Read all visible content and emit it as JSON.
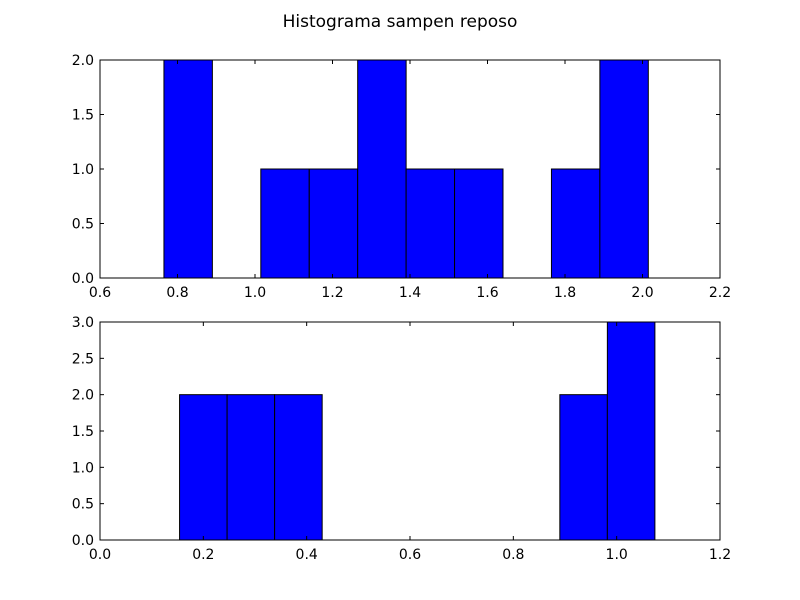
{
  "title": "Histograma sampen reposo",
  "bar_color": "#0000ff",
  "edge_color": "#000000",
  "chart_data": [
    {
      "type": "bar",
      "subtype": "histogram",
      "title": "",
      "xlabel": "",
      "ylabel": "",
      "xlim": [
        0.6,
        2.2
      ],
      "ylim": [
        0.0,
        2.0
      ],
      "xticks": [
        "0.6",
        "0.8",
        "1.0",
        "1.2",
        "1.4",
        "1.6",
        "1.8",
        "2.0",
        "2.2"
      ],
      "yticks": [
        "0.0",
        "0.5",
        "1.0",
        "1.5",
        "2.0"
      ],
      "grid": false,
      "bins": [
        {
          "start": 0.765,
          "end": 0.89,
          "count": 2
        },
        {
          "start": 0.89,
          "end": 1.015,
          "count": 0
        },
        {
          "start": 1.015,
          "end": 1.14,
          "count": 1
        },
        {
          "start": 1.14,
          "end": 1.265,
          "count": 1
        },
        {
          "start": 1.265,
          "end": 1.39,
          "count": 2
        },
        {
          "start": 1.39,
          "end": 1.515,
          "count": 1
        },
        {
          "start": 1.515,
          "end": 1.64,
          "count": 1
        },
        {
          "start": 1.64,
          "end": 1.765,
          "count": 0
        },
        {
          "start": 1.765,
          "end": 1.89,
          "count": 1
        },
        {
          "start": 1.89,
          "end": 2.015,
          "count": 2
        }
      ]
    },
    {
      "type": "bar",
      "subtype": "histogram",
      "title": "",
      "xlabel": "",
      "ylabel": "",
      "xlim": [
        0.0,
        1.2
      ],
      "ylim": [
        0.0,
        3.0
      ],
      "xticks": [
        "0.0",
        "0.2",
        "0.4",
        "0.6",
        "0.8",
        "1.0",
        "1.2"
      ],
      "yticks": [
        "0.0",
        "0.5",
        "1.0",
        "1.5",
        "2.0",
        "2.5",
        "3.0"
      ],
      "grid": false,
      "bins": [
        {
          "start": 0.154,
          "end": 0.246,
          "count": 2
        },
        {
          "start": 0.246,
          "end": 0.338,
          "count": 2
        },
        {
          "start": 0.338,
          "end": 0.43,
          "count": 2
        },
        {
          "start": 0.43,
          "end": 0.522,
          "count": 0
        },
        {
          "start": 0.522,
          "end": 0.614,
          "count": 0
        },
        {
          "start": 0.614,
          "end": 0.706,
          "count": 0
        },
        {
          "start": 0.706,
          "end": 0.798,
          "count": 0
        },
        {
          "start": 0.798,
          "end": 0.89,
          "count": 0
        },
        {
          "start": 0.89,
          "end": 0.982,
          "count": 2
        },
        {
          "start": 0.982,
          "end": 1.074,
          "count": 3
        }
      ]
    }
  ]
}
